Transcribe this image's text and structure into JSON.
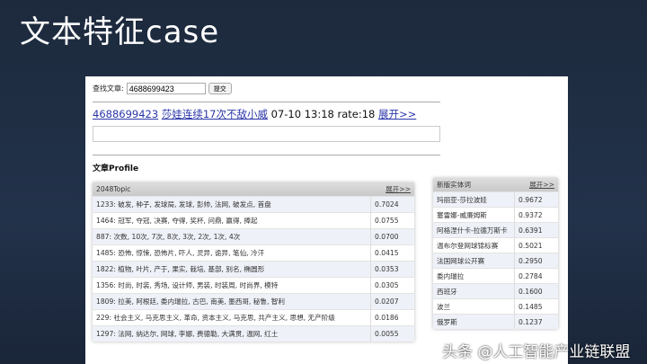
{
  "slide_title": "文本特征case",
  "search": {
    "label": "查找文章:",
    "value": "4688699423",
    "submit": "提交"
  },
  "article": {
    "id": "4688699423",
    "title": "莎娃连续17次不敌小威",
    "time": "07-10 13:18",
    "rate": "rate:18",
    "expand": "展开>>"
  },
  "profile_heading": "文章Profile",
  "topics": {
    "header": "2048Topic",
    "expand": "展开>>",
    "rows": [
      [
        "1233: 破发, 种子, 发球局, 发球, 彭帅, 法网, 破发点, 首盘",
        "0.7024"
      ],
      [
        "1464: 冠军, 夺冠, 决赛, 夺得, 奖杯, 问鼎, 赢得, 捧起",
        "0.0755"
      ],
      [
        "887: 次数, 10次, 7次, 8次, 3次, 2次, 1次, 4次",
        "0.0700"
      ],
      [
        "1485: 恐怖, 惊悚, 恐怖片, 吓人, 灵异, 诡异, 笔仙, 冷汗",
        "0.0415"
      ],
      [
        "1822: 植物, 叶片, 产于, 果实, 栽培, 基部, 别名, 椭圆形",
        "0.0353"
      ],
      [
        "1356: 时尚, 时装, 秀场, 设计师, 男装, 时装周, 时尚界, 模特",
        "0.0305"
      ],
      [
        "1809: 拉美, 阿根廷, 委内瑞拉, 古巴, 南美, 墨西哥, 秘鲁, 智利",
        "0.0207"
      ],
      [
        "229: 社会主义, 马克思主义, 革命, 资本主义, 马克思, 共产主义, 思想, 无产阶级",
        "0.0186"
      ],
      [
        "1297: 法网, 纳达尔, 网球, 李娜, 费德勒, 大满贯, 温网, 红土",
        "0.0055"
      ]
    ]
  },
  "entities": {
    "header": "新版实体词",
    "expand": "展开>>",
    "rows": [
      [
        "玛丽亚-莎拉波娃",
        "0.9672"
      ],
      [
        "塞雷娜-威廉姆斯",
        "0.9372"
      ],
      [
        "阿格涅什卡-拉德万斯卡",
        "0.6391"
      ],
      [
        "温布尔登网球锦标赛",
        "0.5021"
      ],
      [
        "法国网球公开赛",
        "0.2950"
      ],
      [
        "委内瑞拉",
        "0.2784"
      ],
      [
        "西班牙",
        "0.1600"
      ],
      [
        "波兰",
        "0.1485"
      ],
      [
        "俄罗斯",
        "0.1237"
      ]
    ]
  },
  "watermark": "头条 @人工智能产业链联盟"
}
